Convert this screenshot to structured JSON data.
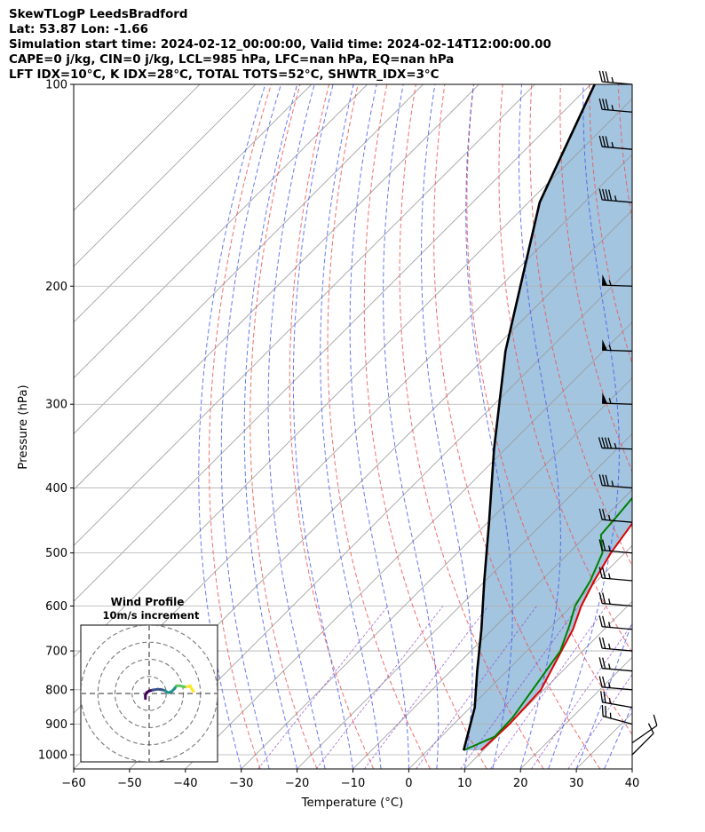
{
  "header": {
    "line1": "SkewTLogP LeedsBradford",
    "line2": "Lat: 53.87   Lon: -1.66",
    "line3": "Simulation start time: 2024-02-12_00:00:00, Valid time: 2024-02-14T12:00:00.00",
    "line4": "CAPE=0 j/kg, CIN=0 j/kg, LCL=985 hPa, LFC=nan hPa, EQ=nan hPa",
    "line5": "LFT IDX=10$^\\circ$C, K IDX=28$^\\circ$C, TOTAL TOTS=52$^\\circ$C, SHWTR_IDX=3$^\\circ$C"
  },
  "chart_data": {
    "type": "line",
    "subtype": "skew-t log-p",
    "xlabel": "Temperature ($^\\circ$C)",
    "ylabel": "Pressure (hPa)",
    "xlim": [
      -60,
      40
    ],
    "ylim": [
      1050,
      100
    ],
    "y_scale": "log",
    "grid": true,
    "x_ticks": [
      -60,
      -50,
      -40,
      -30,
      -20,
      -10,
      0,
      10,
      20,
      30,
      40
    ],
    "y_ticks": [
      1000,
      900,
      800,
      700,
      600,
      500,
      400,
      300,
      200,
      100
    ],
    "colors": {
      "temperature": "#e00000",
      "dewpoint": "#008000",
      "parcel": "#000000",
      "fill": "#a3c5e0",
      "dry_adiabat": "#ee5555",
      "moist_adiabat": "#4455ee",
      "isotherm": "#999999",
      "mixing_ratio": "#8844cc",
      "barb": "#000000"
    },
    "series": [
      {
        "key": "temperature",
        "points": [
          [
            9.6,
            985
          ],
          [
            10,
            900
          ],
          [
            9.5,
            800
          ],
          [
            6.2,
            700
          ],
          [
            4.4,
            650
          ],
          [
            1.7,
            600
          ],
          [
            -0.5,
            550
          ],
          [
            -2.5,
            500
          ],
          [
            -4,
            450
          ],
          [
            -5,
            400
          ],
          [
            -6,
            360
          ],
          [
            -7.5,
            330
          ],
          [
            -12,
            280
          ],
          [
            -14,
            255
          ],
          [
            -14,
            230
          ],
          [
            -12.2,
            210
          ],
          [
            -3.5,
            185
          ],
          [
            -0.3,
            165
          ],
          [
            3.2,
            143
          ],
          [
            7.5,
            125
          ],
          [
            13,
            110
          ],
          [
            16.5,
            100
          ]
        ]
      },
      {
        "key": "dewpoint",
        "points": [
          [
            6.5,
            985
          ],
          [
            9.6,
            940
          ],
          [
            9.4,
            880
          ],
          [
            6,
            700
          ],
          [
            3,
            640
          ],
          [
            0.6,
            600
          ],
          [
            -1.2,
            550
          ],
          [
            -4,
            500
          ],
          [
            -7.5,
            470
          ],
          [
            -8,
            440
          ],
          [
            -9,
            390
          ],
          [
            -9,
            358
          ],
          [
            -11,
            320
          ],
          [
            -14,
            292
          ],
          [
            -14.5,
            280
          ],
          [
            -18,
            262
          ],
          [
            -28.5,
            240
          ],
          [
            -21,
            225
          ],
          [
            -17.5,
            210
          ],
          [
            -22.5,
            194
          ],
          [
            -25.5,
            184
          ],
          [
            -25.5,
            175
          ],
          [
            -18,
            152
          ],
          [
            -8,
            120
          ],
          [
            -2.5,
            100
          ]
        ]
      },
      {
        "key": "parcel",
        "points": [
          [
            6.5,
            985
          ],
          [
            0.8,
            850
          ],
          [
            -5.3,
            750
          ],
          [
            -12,
            650
          ],
          [
            -20.2,
            550
          ],
          [
            -29.8,
            450
          ],
          [
            -42,
            350
          ],
          [
            -57.5,
            250
          ],
          [
            -78,
            150
          ],
          [
            -89.3,
            100
          ]
        ]
      }
    ],
    "wind_barbs": [
      {
        "p": 1000,
        "dir": 45,
        "speed": 10
      },
      {
        "p": 960,
        "dir": 55,
        "speed": 10
      },
      {
        "p": 900,
        "dir": 285,
        "speed": 25
      },
      {
        "p": 850,
        "dir": 280,
        "speed": 25
      },
      {
        "p": 800,
        "dir": 275,
        "speed": 25
      },
      {
        "p": 750,
        "dir": 275,
        "speed": 25
      },
      {
        "p": 700,
        "dir": 275,
        "speed": 25
      },
      {
        "p": 650,
        "dir": 275,
        "speed": 25
      },
      {
        "p": 600,
        "dir": 275,
        "speed": 25
      },
      {
        "p": 550,
        "dir": 275,
        "speed": 25
      },
      {
        "p": 500,
        "dir": 275,
        "speed": 25
      },
      {
        "p": 450,
        "dir": 275,
        "speed": 25
      },
      {
        "p": 400,
        "dir": 275,
        "speed": 35
      },
      {
        "p": 350,
        "dir": 272,
        "speed": 45
      },
      {
        "p": 300,
        "dir": 272,
        "speed": 55
      },
      {
        "p": 250,
        "dir": 272,
        "speed": 55
      },
      {
        "p": 200,
        "dir": 272,
        "speed": 55
      },
      {
        "p": 150,
        "dir": 275,
        "speed": 45
      },
      {
        "p": 125,
        "dir": 275,
        "speed": 35
      },
      {
        "p": 110,
        "dir": 275,
        "speed": 35
      },
      {
        "p": 100,
        "dir": 275,
        "speed": 35
      }
    ],
    "hodograph": {
      "title": "Wind Profile",
      "subtitle": "10m/s increment",
      "max_speed": 40,
      "rings": [
        10,
        20,
        30,
        40
      ],
      "path": [
        [
          -2.2,
          -3
        ],
        [
          -2.2,
          -1
        ],
        [
          -1.5,
          0.5
        ],
        [
          0,
          1.5
        ],
        [
          2,
          2
        ],
        [
          5,
          2.5
        ],
        [
          7,
          2.3
        ],
        [
          9,
          1.8
        ],
        [
          11,
          0.5
        ],
        [
          13,
          1
        ],
        [
          15,
          3
        ],
        [
          16,
          4.5
        ],
        [
          18,
          4.5
        ],
        [
          20,
          4
        ],
        [
          22,
          3.8
        ],
        [
          24,
          4.5
        ],
        [
          25,
          2.5
        ],
        [
          26,
          1.3
        ]
      ],
      "colorscale": [
        "#440154",
        "#3b528b",
        "#21918c",
        "#5ec962",
        "#fde725"
      ]
    }
  }
}
